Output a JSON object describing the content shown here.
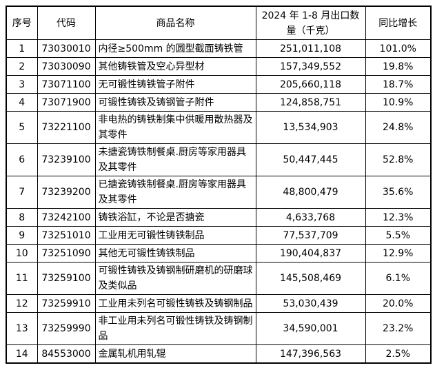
{
  "page": {
    "background_color": "#ffffff"
  },
  "table": {
    "border_color": "#000000",
    "text_color": "#000000",
    "headers": {
      "serial": "序号",
      "code": "代码",
      "product_name": "商品名称",
      "quantity": "2024 年 1-8 月出口数量（千克）",
      "yoy_growth": "同比增长"
    },
    "rows": [
      {
        "no": "1",
        "code": "73030010",
        "name": "内径≥500mm 的圆型截面铸铁管",
        "qty": "251,011,108",
        "growth": "101.0%"
      },
      {
        "no": "2",
        "code": "73030090",
        "name": "其他铸铁管及空心异型材",
        "qty": "157,349,552",
        "growth": "19.8%"
      },
      {
        "no": "3",
        "code": "73071100",
        "name": "无可锻性铸铁管子附件",
        "qty": "205,660,118",
        "growth": "18.7%"
      },
      {
        "no": "4",
        "code": "73071900",
        "name": "可锻性铸铁及铸钢管子附件",
        "qty": "124,858,751",
        "growth": "10.9%"
      },
      {
        "no": "5",
        "code": "73221100",
        "name": "非电热的铸铁制集中供暖用散热器及其零件",
        "qty": "13,534,903",
        "growth": "24.8%"
      },
      {
        "no": "6",
        "code": "73239100",
        "name": "未搪瓷铸铁制餐桌.厨房等家用器具及其零件",
        "qty": "50,447,445",
        "growth": "52.8%"
      },
      {
        "no": "7",
        "code": "73239200",
        "name": "已搪瓷铸铁制餐桌.厨房等家用器具及其零件",
        "qty": "48,800,479",
        "growth": "35.6%"
      },
      {
        "no": "8",
        "code": "73242100",
        "name": "铸铁浴缸，不论是否搪瓷",
        "qty": "4,633,768",
        "growth": "12.3%"
      },
      {
        "no": "9",
        "code": "73251010",
        "name": "工业用无可锻性铸铁制品",
        "qty": "77,537,709",
        "growth": "5.5%"
      },
      {
        "no": "10",
        "code": "73251090",
        "name": "其他无可锻性铸铁制品",
        "qty": "190,404,837",
        "growth": "12.9%"
      },
      {
        "no": "11",
        "code": "73259100",
        "name": "可锻性铸铁及铸钢制研磨机的研磨球及类似品",
        "qty": "145,508,469",
        "growth": "6.1%"
      },
      {
        "no": "12",
        "code": "73259910",
        "name": "工业用未列名可锻性铸铁及铸钢制品",
        "qty": "53,030,439",
        "growth": "20.0%"
      },
      {
        "no": "13",
        "code": "73259990",
        "name": "非工业用未列名可锻性铸铁及铸钢制品",
        "qty": "34,590,001",
        "growth": "23.2%"
      },
      {
        "no": "14",
        "code": "84553000",
        "name": "金属轧机用轧辊",
        "qty": "147,396,563",
        "growth": "2.5%"
      }
    ]
  }
}
